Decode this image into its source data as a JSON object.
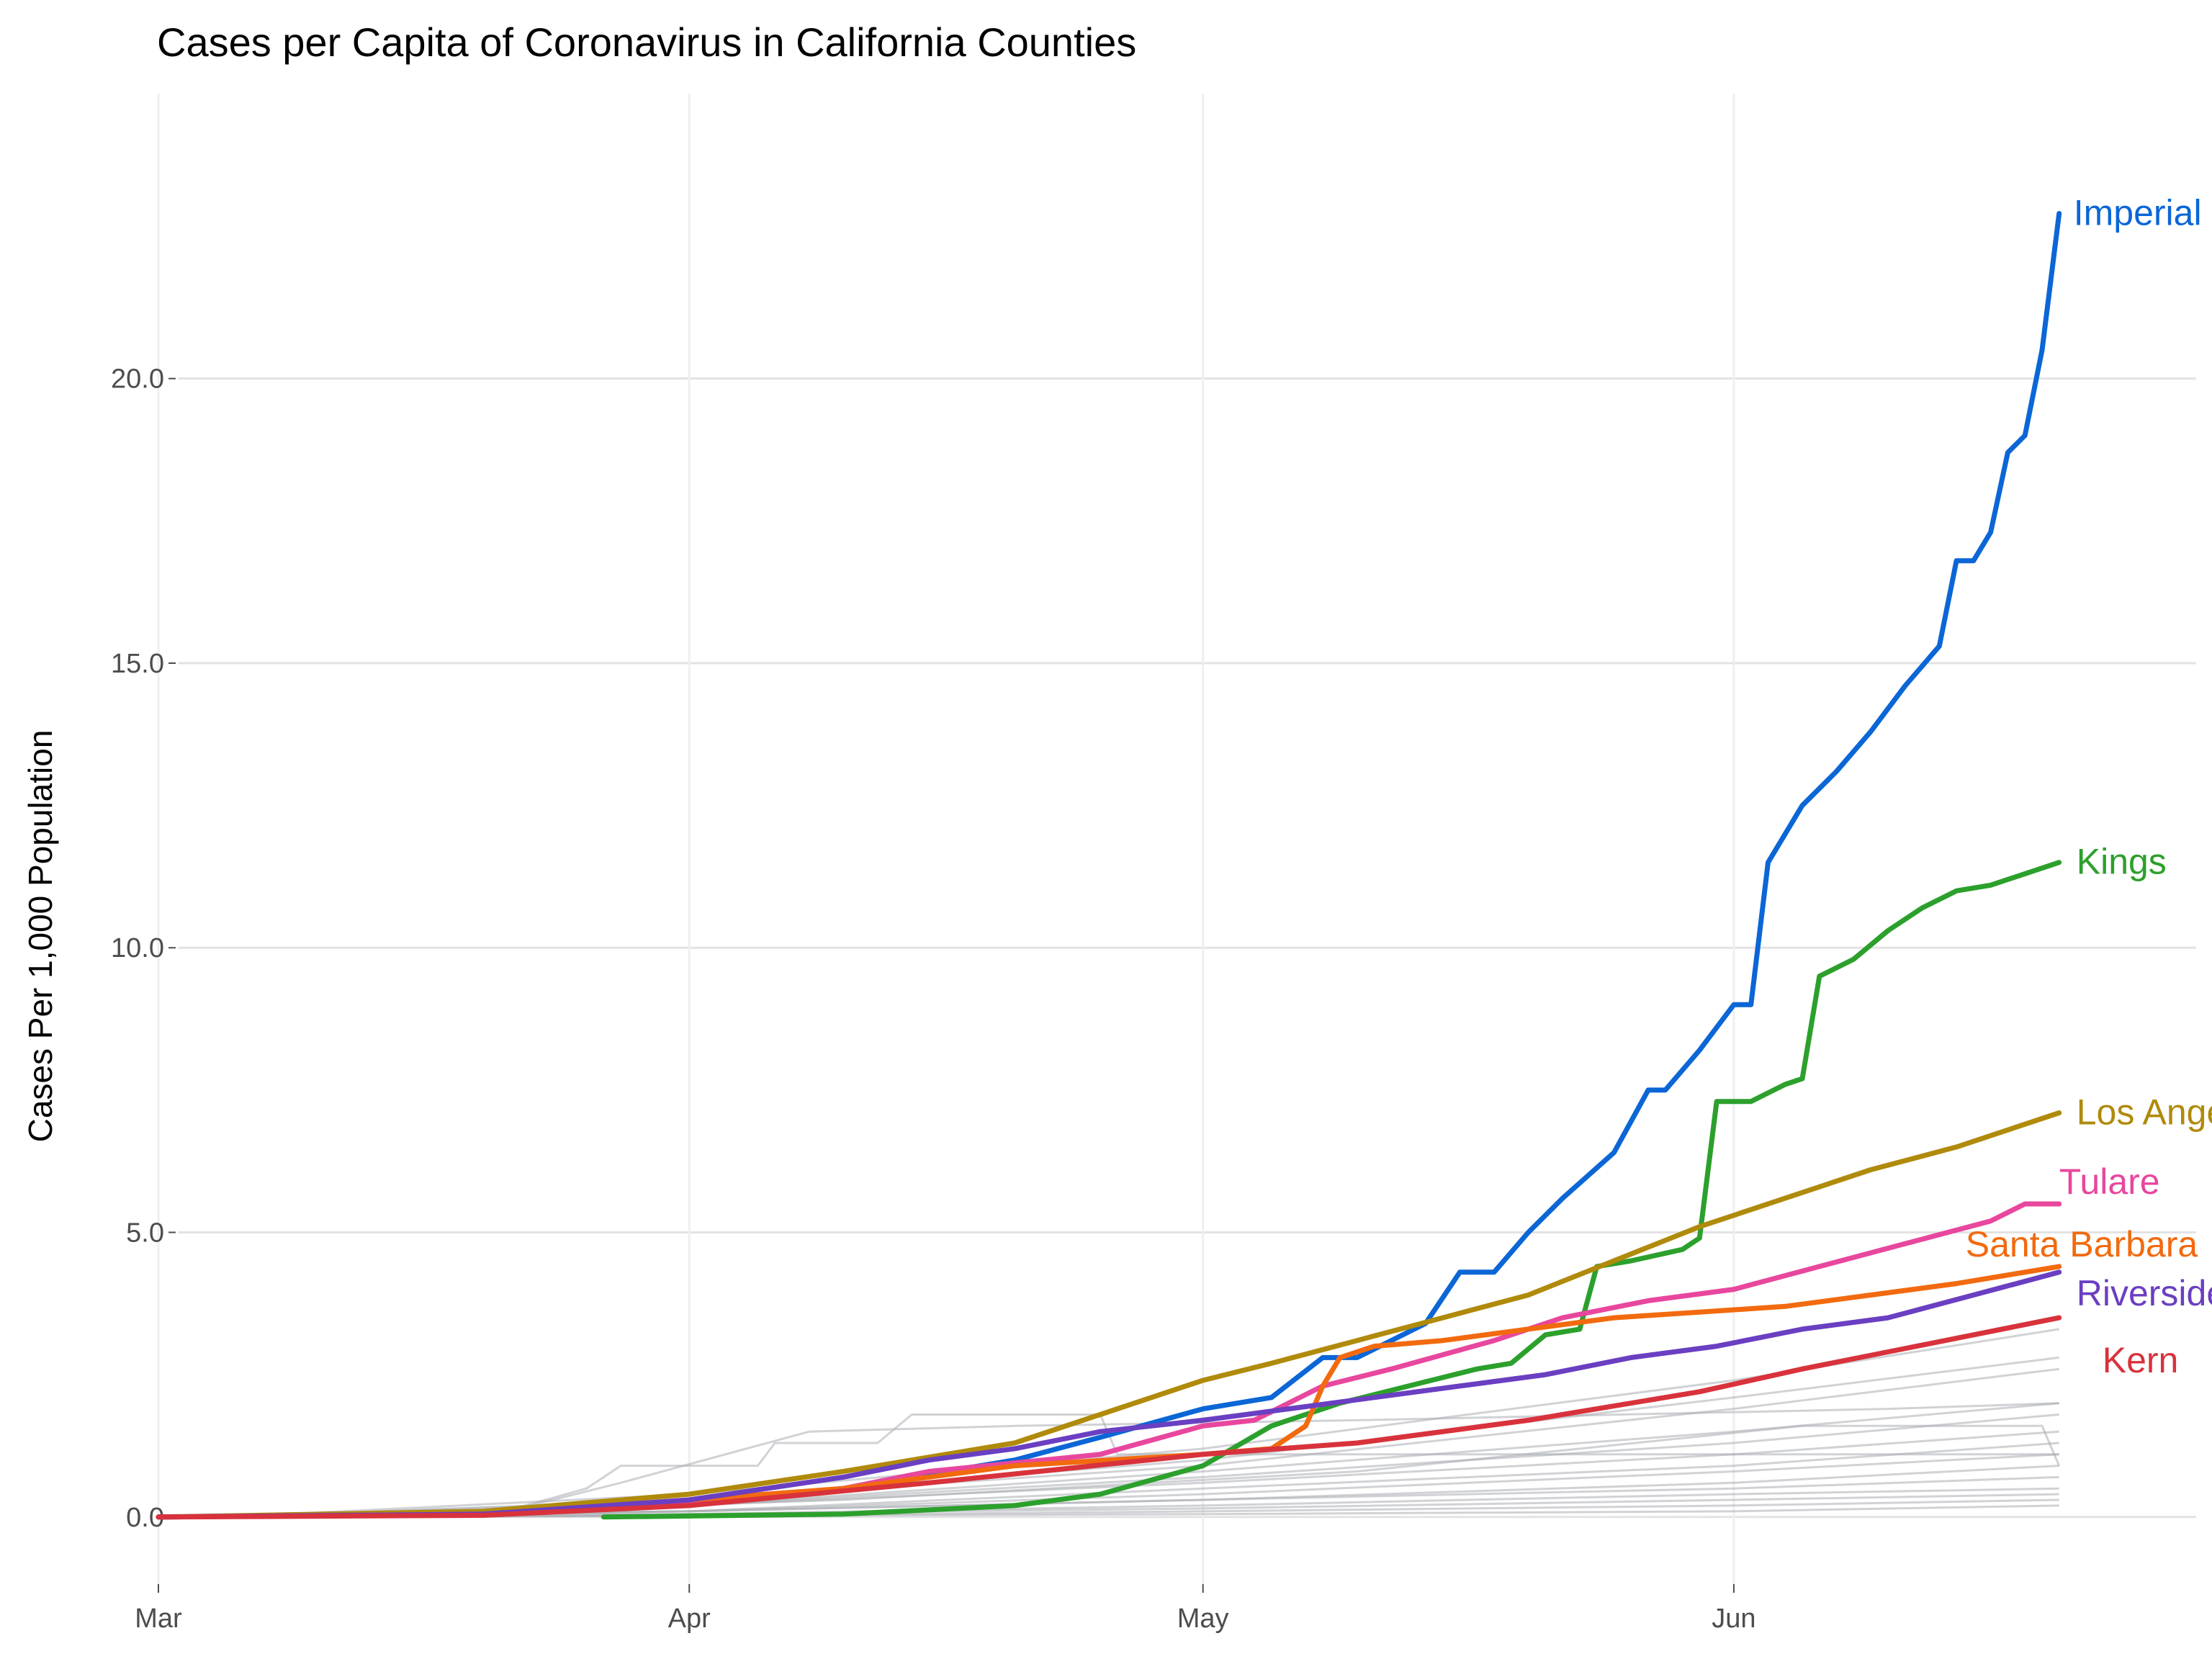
{
  "chart_data": {
    "type": "line",
    "title": "Cases per Capita of Coronavirus in California Counties",
    "xlabel": "",
    "ylabel": "Cases Per 1,000 Population",
    "x_unit": "date",
    "xlim": [
      "2020-03-01",
      "2020-06-28"
    ],
    "ylim": [
      -0.8,
      24.5
    ],
    "x_ticks": [
      {
        "date": "2020-03-01",
        "label": "Mar"
      },
      {
        "date": "2020-04-01",
        "label": "Apr"
      },
      {
        "date": "2020-05-01",
        "label": "May"
      },
      {
        "date": "2020-06-01",
        "label": "Jun"
      }
    ],
    "y_ticks": [
      {
        "value": 0,
        "label": "0.0"
      },
      {
        "value": 5,
        "label": "5.0"
      },
      {
        "value": 10,
        "label": "10.0"
      },
      {
        "value": 15,
        "label": "15.0"
      },
      {
        "value": 20,
        "label": "20.0"
      }
    ],
    "grid": true,
    "legend": "direct labels at line ends (right)",
    "highlighted_series": [
      {
        "name": "Imperial",
        "color": "#0b66d6",
        "points": [
          [
            "2020-03-01",
            0
          ],
          [
            "2020-03-20",
            0.05
          ],
          [
            "2020-04-01",
            0.25
          ],
          [
            "2020-04-10",
            0.5
          ],
          [
            "2020-04-20",
            1.0
          ],
          [
            "2020-04-25",
            1.4
          ],
          [
            "2020-05-01",
            1.9
          ],
          [
            "2020-05-05",
            2.1
          ],
          [
            "2020-05-08",
            2.8
          ],
          [
            "2020-05-10",
            2.8
          ],
          [
            "2020-05-14",
            3.4
          ],
          [
            "2020-05-16",
            4.3
          ],
          [
            "2020-05-18",
            4.3
          ],
          [
            "2020-05-20",
            5.0
          ],
          [
            "2020-05-22",
            5.6
          ],
          [
            "2020-05-25",
            6.4
          ],
          [
            "2020-05-27",
            7.5
          ],
          [
            "2020-05-28",
            7.5
          ],
          [
            "2020-05-30",
            8.2
          ],
          [
            "2020-06-01",
            9.0
          ],
          [
            "2020-06-02",
            9.0
          ],
          [
            "2020-06-03",
            11.5
          ],
          [
            "2020-06-05",
            12.5
          ],
          [
            "2020-06-07",
            13.1
          ],
          [
            "2020-06-09",
            13.8
          ],
          [
            "2020-06-11",
            14.6
          ],
          [
            "2020-06-13",
            15.3
          ],
          [
            "2020-06-14",
            16.8
          ],
          [
            "2020-06-15",
            16.8
          ],
          [
            "2020-06-16",
            17.3
          ],
          [
            "2020-06-17",
            18.7
          ],
          [
            "2020-06-18",
            19.0
          ],
          [
            "2020-06-19",
            20.5
          ],
          [
            "2020-06-20",
            22.9
          ]
        ]
      },
      {
        "name": "Kings",
        "color": "#2ca02c",
        "points": [
          [
            "2020-03-27",
            0
          ],
          [
            "2020-04-10",
            0.05
          ],
          [
            "2020-04-20",
            0.2
          ],
          [
            "2020-04-25",
            0.4
          ],
          [
            "2020-05-01",
            0.9
          ],
          [
            "2020-05-05",
            1.6
          ],
          [
            "2020-05-09",
            2.0
          ],
          [
            "2020-05-13",
            2.3
          ],
          [
            "2020-05-17",
            2.6
          ],
          [
            "2020-05-19",
            2.7
          ],
          [
            "2020-05-21",
            3.2
          ],
          [
            "2020-05-23",
            3.3
          ],
          [
            "2020-05-24",
            4.4
          ],
          [
            "2020-05-26",
            4.5
          ],
          [
            "2020-05-29",
            4.7
          ],
          [
            "2020-05-30",
            4.9
          ],
          [
            "2020-05-31",
            7.3
          ],
          [
            "2020-06-02",
            7.3
          ],
          [
            "2020-06-04",
            7.6
          ],
          [
            "2020-06-05",
            7.7
          ],
          [
            "2020-06-06",
            9.5
          ],
          [
            "2020-06-08",
            9.8
          ],
          [
            "2020-06-10",
            10.3
          ],
          [
            "2020-06-12",
            10.7
          ],
          [
            "2020-06-14",
            11.0
          ],
          [
            "2020-06-16",
            11.1
          ],
          [
            "2020-06-20",
            11.5
          ]
        ]
      },
      {
        "name": "Los Angeles",
        "color": "#b08a0a",
        "points": [
          [
            "2020-03-01",
            0
          ],
          [
            "2020-03-20",
            0.1
          ],
          [
            "2020-04-01",
            0.4
          ],
          [
            "2020-04-10",
            0.8
          ],
          [
            "2020-04-20",
            1.3
          ],
          [
            "2020-04-25",
            1.8
          ],
          [
            "2020-05-01",
            2.4
          ],
          [
            "2020-05-05",
            2.7
          ],
          [
            "2020-05-10",
            3.1
          ],
          [
            "2020-05-15",
            3.5
          ],
          [
            "2020-05-20",
            3.9
          ],
          [
            "2020-05-25",
            4.5
          ],
          [
            "2020-05-30",
            5.1
          ],
          [
            "2020-06-04",
            5.6
          ],
          [
            "2020-06-09",
            6.1
          ],
          [
            "2020-06-14",
            6.5
          ],
          [
            "2020-06-20",
            7.1
          ]
        ]
      },
      {
        "name": "Tulare",
        "color": "#e8479e",
        "points": [
          [
            "2020-03-01",
            0
          ],
          [
            "2020-03-20",
            0.05
          ],
          [
            "2020-04-01",
            0.25
          ],
          [
            "2020-04-10",
            0.5
          ],
          [
            "2020-04-15",
            0.8
          ],
          [
            "2020-04-25",
            1.1
          ],
          [
            "2020-05-01",
            1.6
          ],
          [
            "2020-05-04",
            1.7
          ],
          [
            "2020-05-08",
            2.3
          ],
          [
            "2020-05-12",
            2.6
          ],
          [
            "2020-05-18",
            3.1
          ],
          [
            "2020-05-22",
            3.5
          ],
          [
            "2020-05-27",
            3.8
          ],
          [
            "2020-06-01",
            4.0
          ],
          [
            "2020-06-06",
            4.4
          ],
          [
            "2020-06-11",
            4.8
          ],
          [
            "2020-06-16",
            5.2
          ],
          [
            "2020-06-18",
            5.5
          ],
          [
            "2020-06-20",
            5.5
          ]
        ]
      },
      {
        "name": "Santa Barbara",
        "color": "#f26a0f",
        "points": [
          [
            "2020-03-01",
            0
          ],
          [
            "2020-03-20",
            0.05
          ],
          [
            "2020-04-01",
            0.3
          ],
          [
            "2020-04-10",
            0.5
          ],
          [
            "2020-04-20",
            0.9
          ],
          [
            "2020-05-01",
            1.1
          ],
          [
            "2020-05-05",
            1.2
          ],
          [
            "2020-05-07",
            1.6
          ],
          [
            "2020-05-08",
            2.3
          ],
          [
            "2020-05-09",
            2.8
          ],
          [
            "2020-05-11",
            3.0
          ],
          [
            "2020-05-15",
            3.1
          ],
          [
            "2020-05-20",
            3.3
          ],
          [
            "2020-05-25",
            3.5
          ],
          [
            "2020-05-30",
            3.6
          ],
          [
            "2020-06-04",
            3.7
          ],
          [
            "2020-06-09",
            3.9
          ],
          [
            "2020-06-14",
            4.1
          ],
          [
            "2020-06-20",
            4.4
          ]
        ]
      },
      {
        "name": "Riverside",
        "color": "#6a3fc2",
        "points": [
          [
            "2020-03-01",
            0
          ],
          [
            "2020-03-20",
            0.05
          ],
          [
            "2020-04-01",
            0.3
          ],
          [
            "2020-04-10",
            0.7
          ],
          [
            "2020-04-15",
            1.0
          ],
          [
            "2020-04-20",
            1.2
          ],
          [
            "2020-04-25",
            1.5
          ],
          [
            "2020-05-01",
            1.7
          ],
          [
            "2020-05-06",
            1.9
          ],
          [
            "2020-05-11",
            2.1
          ],
          [
            "2020-05-16",
            2.3
          ],
          [
            "2020-05-21",
            2.5
          ],
          [
            "2020-05-26",
            2.8
          ],
          [
            "2020-05-31",
            3.0
          ],
          [
            "2020-06-05",
            3.3
          ],
          [
            "2020-06-10",
            3.5
          ],
          [
            "2020-06-15",
            3.9
          ],
          [
            "2020-06-20",
            4.3
          ]
        ]
      },
      {
        "name": "Kern",
        "color": "#d8323c",
        "points": [
          [
            "2020-03-01",
            0
          ],
          [
            "2020-03-20",
            0.03
          ],
          [
            "2020-04-01",
            0.2
          ],
          [
            "2020-04-15",
            0.6
          ],
          [
            "2020-05-01",
            1.1
          ],
          [
            "2020-05-10",
            1.3
          ],
          [
            "2020-05-20",
            1.7
          ],
          [
            "2020-05-30",
            2.2
          ],
          [
            "2020-06-05",
            2.6
          ],
          [
            "2020-06-10",
            2.9
          ],
          [
            "2020-06-15",
            3.2
          ],
          [
            "2020-06-20",
            3.5
          ]
        ]
      }
    ],
    "other_counties": {
      "color": "#a9adb3",
      "series": [
        [
          [
            "2020-03-05",
            0
          ],
          [
            "2020-04-01",
            0.4
          ],
          [
            "2020-05-01",
            1.2
          ],
          [
            "2020-06-01",
            2.4
          ],
          [
            "2020-06-20",
            3.3
          ]
        ],
        [
          [
            "2020-03-05",
            0
          ],
          [
            "2020-04-01",
            0.3
          ],
          [
            "2020-05-01",
            1.0
          ],
          [
            "2020-06-01",
            2.1
          ],
          [
            "2020-06-20",
            2.8
          ]
        ],
        [
          [
            "2020-03-05",
            0
          ],
          [
            "2020-04-01",
            0.3
          ],
          [
            "2020-05-01",
            0.9
          ],
          [
            "2020-06-01",
            1.9
          ],
          [
            "2020-06-20",
            2.6
          ]
        ],
        [
          [
            "2020-03-05",
            0
          ],
          [
            "2020-04-01",
            0.2
          ],
          [
            "2020-05-01",
            0.8
          ],
          [
            "2020-06-01",
            1.5
          ],
          [
            "2020-06-20",
            2.0
          ]
        ],
        [
          [
            "2020-03-05",
            0
          ],
          [
            "2020-04-01",
            0.2
          ],
          [
            "2020-05-01",
            0.7
          ],
          [
            "2020-06-01",
            1.3
          ],
          [
            "2020-06-20",
            1.8
          ]
        ],
        [
          [
            "2020-03-05",
            0
          ],
          [
            "2020-04-01",
            0.2
          ],
          [
            "2020-05-01",
            0.6
          ],
          [
            "2020-06-01",
            1.1
          ],
          [
            "2020-06-20",
            1.5
          ]
        ],
        [
          [
            "2020-03-05",
            0
          ],
          [
            "2020-04-01",
            0.1
          ],
          [
            "2020-05-01",
            0.5
          ],
          [
            "2020-06-01",
            0.9
          ],
          [
            "2020-06-20",
            1.3
          ]
        ],
        [
          [
            "2020-03-05",
            0
          ],
          [
            "2020-04-01",
            0.1
          ],
          [
            "2020-05-01",
            0.4
          ],
          [
            "2020-06-01",
            0.8
          ],
          [
            "2020-06-20",
            1.1
          ]
        ],
        [
          [
            "2020-03-05",
            0
          ],
          [
            "2020-04-01",
            0.1
          ],
          [
            "2020-05-01",
            0.3
          ],
          [
            "2020-06-01",
            0.6
          ],
          [
            "2020-06-20",
            0.9
          ]
        ],
        [
          [
            "2020-03-05",
            0
          ],
          [
            "2020-04-01",
            0.1
          ],
          [
            "2020-05-01",
            0.3
          ],
          [
            "2020-06-01",
            0.5
          ],
          [
            "2020-06-20",
            0.7
          ]
        ],
        [
          [
            "2020-03-05",
            0
          ],
          [
            "2020-04-01",
            0.05
          ],
          [
            "2020-05-01",
            0.2
          ],
          [
            "2020-06-01",
            0.4
          ],
          [
            "2020-06-20",
            0.5
          ]
        ],
        [
          [
            "2020-03-05",
            0
          ],
          [
            "2020-04-01",
            0.05
          ],
          [
            "2020-05-01",
            0.15
          ],
          [
            "2020-06-01",
            0.3
          ],
          [
            "2020-06-20",
            0.4
          ]
        ],
        [
          [
            "2020-03-05",
            0
          ],
          [
            "2020-04-01",
            0.02
          ],
          [
            "2020-05-01",
            0.1
          ],
          [
            "2020-06-01",
            0.2
          ],
          [
            "2020-06-20",
            0.3
          ]
        ],
        [
          [
            "2020-03-05",
            0
          ],
          [
            "2020-04-01",
            0.02
          ],
          [
            "2020-05-01",
            0.05
          ],
          [
            "2020-06-01",
            0.1
          ],
          [
            "2020-06-20",
            0.2
          ]
        ],
        [
          [
            "2020-03-20",
            0
          ],
          [
            "2020-03-26",
            0.5
          ],
          [
            "2020-03-28",
            0.9
          ],
          [
            "2020-04-05",
            0.9
          ],
          [
            "2020-04-06",
            1.3
          ],
          [
            "2020-04-12",
            1.3
          ],
          [
            "2020-04-14",
            1.8
          ],
          [
            "2020-04-25",
            1.8
          ],
          [
            "2020-04-26",
            1.1
          ],
          [
            "2020-05-01",
            1.1
          ],
          [
            "2020-06-20",
            1.1
          ]
        ],
        [
          [
            "2020-03-20",
            0
          ],
          [
            "2020-03-28",
            0.6
          ],
          [
            "2020-04-08",
            1.5
          ],
          [
            "2020-04-20",
            1.6
          ],
          [
            "2020-05-10",
            1.7
          ],
          [
            "2020-06-10",
            1.9
          ],
          [
            "2020-06-20",
            2.0
          ]
        ],
        [
          [
            "2020-03-10",
            0
          ],
          [
            "2020-04-10",
            0.3
          ],
          [
            "2020-05-10",
            0.8
          ],
          [
            "2020-06-05",
            1.6
          ],
          [
            "2020-06-19",
            1.6
          ],
          [
            "2020-06-20",
            0.9
          ]
        ]
      ]
    }
  }
}
